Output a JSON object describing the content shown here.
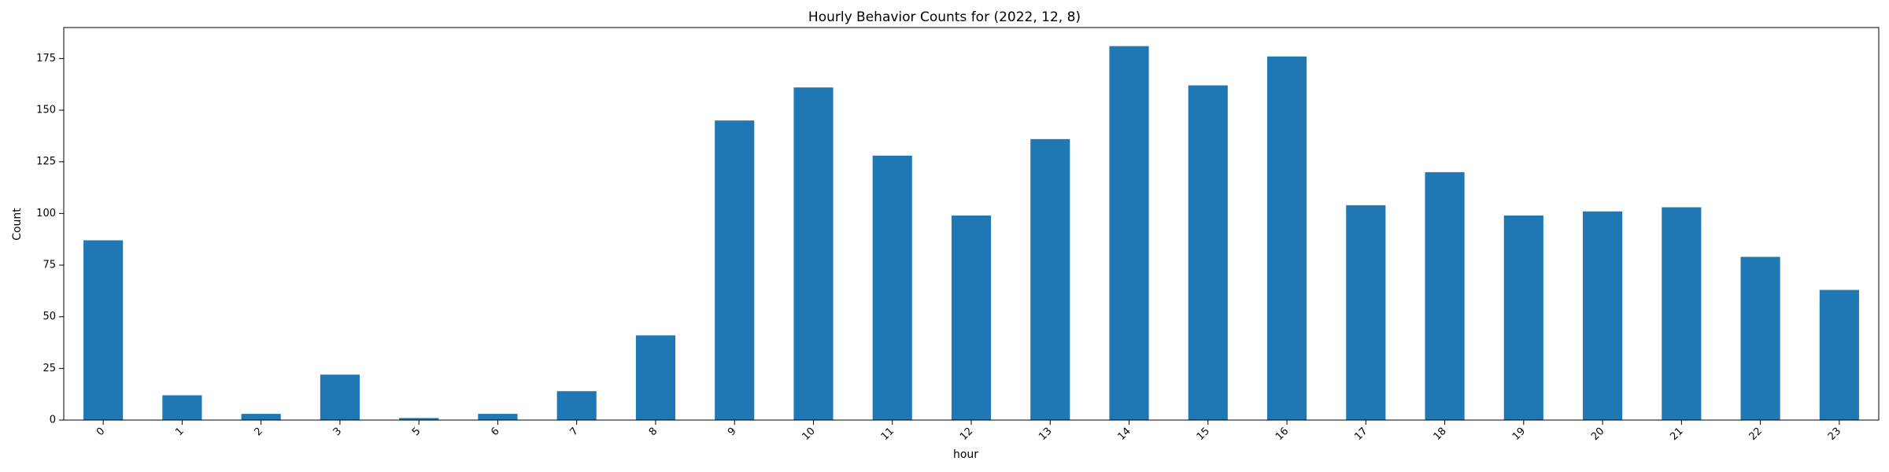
{
  "chart_data": {
    "type": "bar",
    "title": "Hourly Behavior Counts for (2022, 12, 8)",
    "xlabel": "hour",
    "ylabel": "Count",
    "categories": [
      "0",
      "1",
      "2",
      "3",
      "5",
      "6",
      "7",
      "8",
      "9",
      "10",
      "11",
      "12",
      "13",
      "14",
      "15",
      "16",
      "17",
      "18",
      "19",
      "20",
      "21",
      "22",
      "23"
    ],
    "values": [
      87,
      12,
      3,
      22,
      1,
      3,
      14,
      41,
      145,
      161,
      128,
      99,
      136,
      181,
      162,
      176,
      104,
      120,
      99,
      101,
      103,
      79,
      63
    ],
    "ylim": [
      0,
      190
    ],
    "yticks": [
      0,
      25,
      50,
      75,
      100,
      125,
      150,
      175
    ],
    "grid": false,
    "legend": "none",
    "bar_color": "#1f77b4"
  }
}
